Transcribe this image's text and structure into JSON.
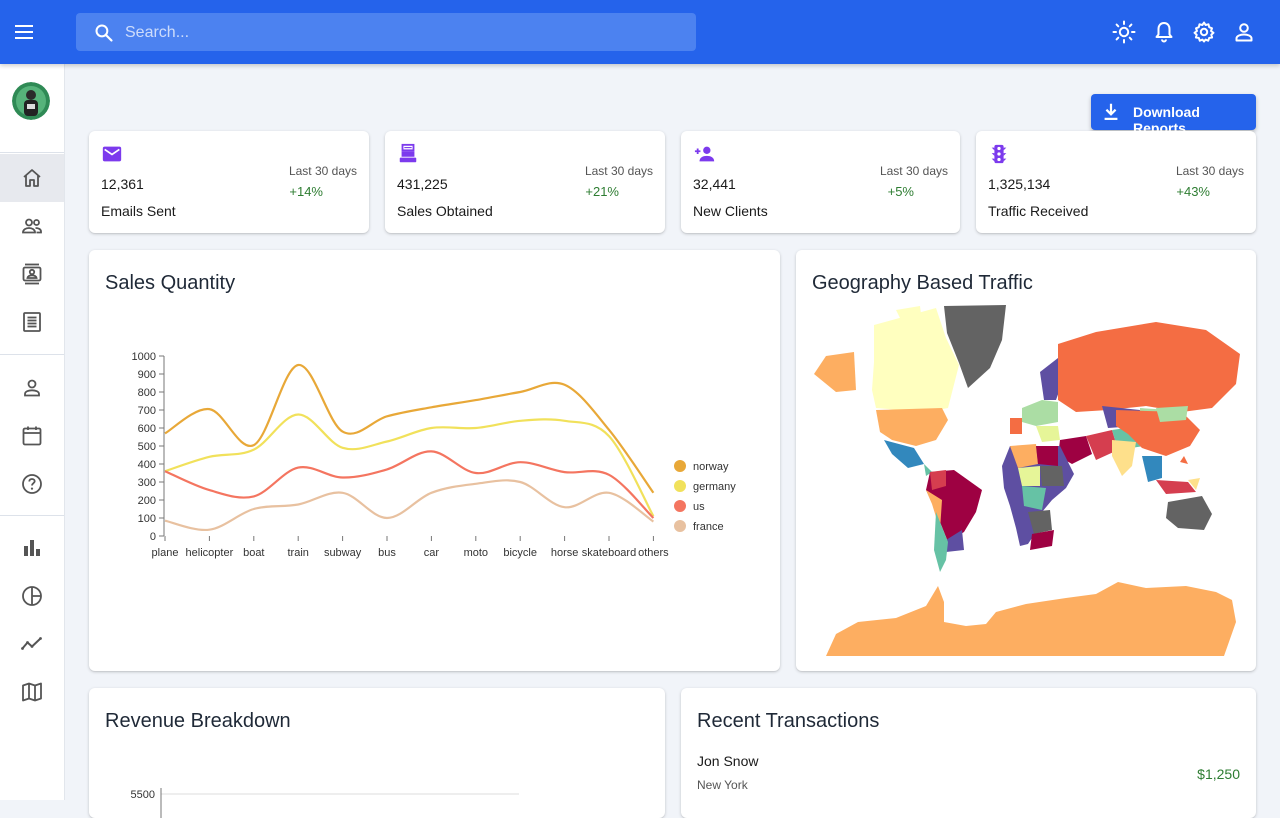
{
  "topbar": {
    "search_placeholder": "Search...",
    "icons": [
      "menu-icon",
      "search-icon",
      "sun-icon",
      "bell-icon",
      "settings-icon",
      "user-icon"
    ]
  },
  "sidebar": {
    "items": [
      {
        "name": "home",
        "icon": "home-icon",
        "active": true
      },
      {
        "name": "team",
        "icon": "people-icon"
      },
      {
        "name": "contacts",
        "icon": "contacts-icon"
      },
      {
        "name": "invoices",
        "icon": "receipt-icon"
      },
      {
        "name": "profile",
        "icon": "person-icon"
      },
      {
        "name": "calendar",
        "icon": "calendar-icon"
      },
      {
        "name": "faq",
        "icon": "help-icon"
      },
      {
        "name": "bar-chart",
        "icon": "bar-chart-icon"
      },
      {
        "name": "pie-chart",
        "icon": "pie-chart-icon"
      },
      {
        "name": "line-chart",
        "icon": "line-chart-icon"
      },
      {
        "name": "geography",
        "icon": "map-icon"
      }
    ]
  },
  "main": {
    "download_label": "Download Reports",
    "stats": [
      {
        "icon": "email-icon",
        "value": "12,361",
        "label": "Emails Sent",
        "period": "Last 30 days",
        "change": "+14%"
      },
      {
        "icon": "point-of-sale-icon",
        "value": "431,225",
        "label": "Sales Obtained",
        "period": "Last 30 days",
        "change": "+21%"
      },
      {
        "icon": "person-add-icon",
        "value": "32,441",
        "label": "New Clients",
        "period": "Last 30 days",
        "change": "+5%"
      },
      {
        "icon": "traffic-icon",
        "value": "1,325,134",
        "label": "Traffic Received",
        "period": "Last 30 days",
        "change": "+43%"
      }
    ],
    "sales_title": "Sales Quantity",
    "geo_title": "Geography Based Traffic",
    "revenue_title": "Revenue Breakdown",
    "revenue_axis_top": "5500",
    "transactions_title": "Recent Transactions",
    "transactions": [
      {
        "name": "Jon Snow",
        "city": "New York",
        "amount": "$1,250"
      }
    ]
  },
  "colors": {
    "brand": "#2563eb",
    "stat_icon": "#7c3aed",
    "positive": "#2e7d32"
  },
  "chart_data": {
    "type": "line",
    "title": "Sales Quantity",
    "categories": [
      "plane",
      "helicopter",
      "boat",
      "train",
      "subway",
      "bus",
      "car",
      "moto",
      "bicycle",
      "horse",
      "skateboard",
      "others"
    ],
    "ylim": [
      0,
      1000
    ],
    "yticks": [
      0,
      100,
      200,
      300,
      400,
      500,
      600,
      700,
      800,
      900,
      1000
    ],
    "legend_position": "right",
    "series": [
      {
        "name": "norway",
        "color": "#e8a838",
        "values": [
          570,
          705,
          505,
          950,
          580,
          665,
          715,
          755,
          800,
          840,
          590,
          240
        ]
      },
      {
        "name": "germany",
        "color": "#f1e15b",
        "values": [
          360,
          440,
          480,
          675,
          490,
          525,
          600,
          600,
          640,
          640,
          555,
          110
        ]
      },
      {
        "name": "us",
        "color": "#f47560",
        "values": [
          360,
          255,
          220,
          380,
          325,
          370,
          470,
          350,
          410,
          355,
          340,
          100
        ]
      },
      {
        "name": "france",
        "color": "#e8c1a0",
        "values": [
          85,
          35,
          150,
          175,
          240,
          100,
          240,
          290,
          300,
          160,
          240,
          80
        ]
      }
    ]
  }
}
